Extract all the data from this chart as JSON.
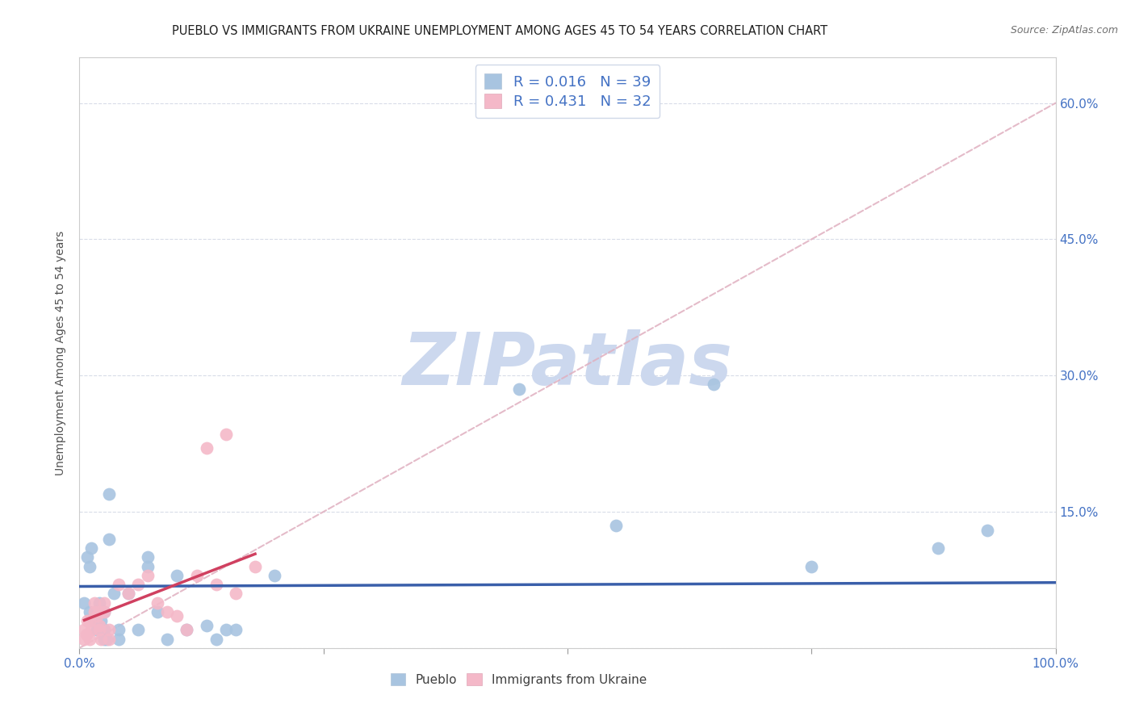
{
  "title": "PUEBLO VS IMMIGRANTS FROM UKRAINE UNEMPLOYMENT AMONG AGES 45 TO 54 YEARS CORRELATION CHART",
  "source": "Source: ZipAtlas.com",
  "xlabel": "",
  "ylabel": "Unemployment Among Ages 45 to 54 years",
  "xlim": [
    0,
    1.0
  ],
  "ylim": [
    0,
    0.65
  ],
  "xticks": [
    0.0,
    0.25,
    0.5,
    0.75,
    1.0
  ],
  "xticklabels": [
    "0.0%",
    "",
    "",
    "",
    "100.0%"
  ],
  "yticks": [
    0.0,
    0.15,
    0.3,
    0.45,
    0.6
  ],
  "yticklabels": [
    "",
    "15.0%",
    "30.0%",
    "45.0%",
    "60.0%"
  ],
  "pueblo_R": 0.016,
  "pueblo_N": 39,
  "ukraine_R": 0.431,
  "ukraine_N": 32,
  "pueblo_color": "#a8c4e0",
  "ukraine_color": "#f4b8c8",
  "pueblo_line_color": "#3a5faa",
  "ukraine_line_color": "#d04060",
  "dashed_line_color": "#e0b0c0",
  "background_color": "#ffffff",
  "tick_color": "#4472C4",
  "label_color": "#505050",
  "grid_color": "#d8dce8",
  "pueblo_x": [
    0.005,
    0.008,
    0.01,
    0.01,
    0.012,
    0.015,
    0.015,
    0.018,
    0.02,
    0.02,
    0.022,
    0.025,
    0.025,
    0.025,
    0.028,
    0.03,
    0.03,
    0.035,
    0.04,
    0.04,
    0.05,
    0.06,
    0.07,
    0.07,
    0.08,
    0.09,
    0.1,
    0.11,
    0.13,
    0.14,
    0.15,
    0.16,
    0.2,
    0.45,
    0.55,
    0.65,
    0.75,
    0.88,
    0.93
  ],
  "pueblo_y": [
    0.05,
    0.1,
    0.09,
    0.04,
    0.11,
    0.03,
    0.035,
    0.02,
    0.05,
    0.04,
    0.03,
    0.02,
    0.04,
    0.01,
    0.01,
    0.17,
    0.12,
    0.06,
    0.02,
    0.01,
    0.06,
    0.02,
    0.1,
    0.09,
    0.04,
    0.01,
    0.08,
    0.02,
    0.025,
    0.01,
    0.02,
    0.02,
    0.08,
    0.285,
    0.135,
    0.29,
    0.09,
    0.11,
    0.13
  ],
  "ukraine_x": [
    0.005,
    0.005,
    0.007,
    0.008,
    0.01,
    0.01,
    0.012,
    0.015,
    0.015,
    0.018,
    0.02,
    0.02,
    0.02,
    0.022,
    0.025,
    0.025,
    0.03,
    0.03,
    0.04,
    0.05,
    0.06,
    0.07,
    0.08,
    0.09,
    0.1,
    0.11,
    0.12,
    0.13,
    0.14,
    0.15,
    0.16,
    0.18
  ],
  "ukraine_y": [
    0.02,
    0.01,
    0.015,
    0.03,
    0.01,
    0.03,
    0.02,
    0.05,
    0.04,
    0.035,
    0.025,
    0.02,
    0.04,
    0.01,
    0.05,
    0.04,
    0.02,
    0.01,
    0.07,
    0.06,
    0.07,
    0.08,
    0.05,
    0.04,
    0.035,
    0.02,
    0.08,
    0.22,
    0.07,
    0.235,
    0.06,
    0.09
  ],
  "title_fontsize": 10.5,
  "label_fontsize": 10,
  "tick_fontsize": 11,
  "legend_fontsize": 13,
  "watermark_text": "ZIPatlas",
  "watermark_color": "#ccd8ee",
  "watermark_fontsize": 65
}
